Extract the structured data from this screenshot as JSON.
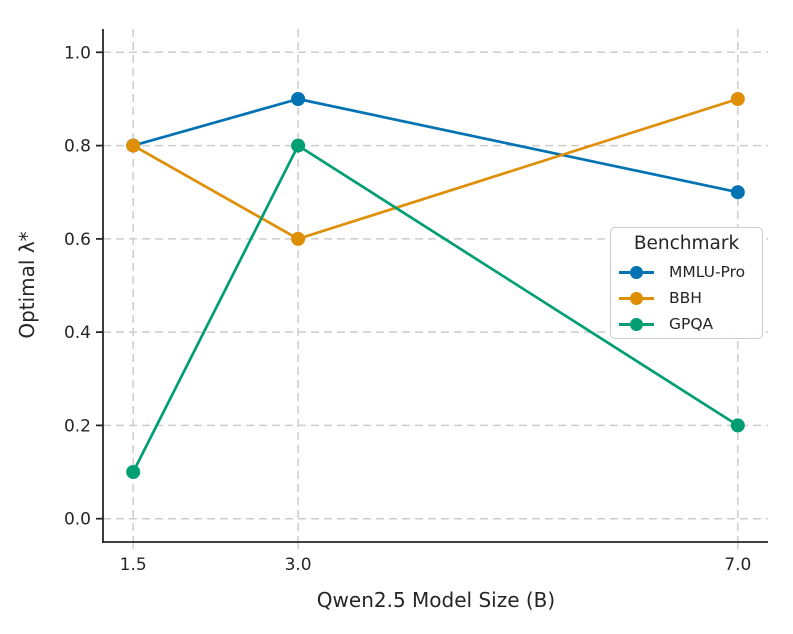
{
  "chart_data": {
    "type": "line",
    "title": "",
    "xlabel": "Qwen2.5 Model Size (B)",
    "ylabel": "Optimal λ*",
    "x": [
      1.5,
      3.0,
      7.0
    ],
    "x_tick_labels": [
      "1.5",
      "3.0",
      "7.0"
    ],
    "y_ticks": [
      0.0,
      0.2,
      0.4,
      0.6,
      0.8,
      1.0
    ],
    "y_tick_labels": [
      "0.0",
      "0.2",
      "0.4",
      "0.6",
      "0.8",
      "1.0"
    ],
    "xlim": [
      1.225,
      7.275
    ],
    "ylim": [
      -0.05,
      1.05
    ],
    "grid": true,
    "grid_style": "dashed",
    "legend": {
      "title": "Benchmark",
      "position": "center-right"
    },
    "series": [
      {
        "name": "MMLU-Pro",
        "color": "#0173B2",
        "values": [
          0.8,
          0.9,
          0.7
        ]
      },
      {
        "name": "BBH",
        "color": "#DE8F05",
        "values": [
          0.8,
          0.6,
          0.9
        ]
      },
      {
        "name": "GPQA",
        "color": "#029E73",
        "values": [
          0.1,
          0.8,
          0.2
        ]
      }
    ]
  },
  "colors": {
    "background": "#ffffff",
    "grid": "#cccccc",
    "spine": "#262626",
    "text": "#262626",
    "x_tick_mark": "#cccccc",
    "y_tick_mark": "#262626",
    "legend_border": "#cccccc"
  }
}
